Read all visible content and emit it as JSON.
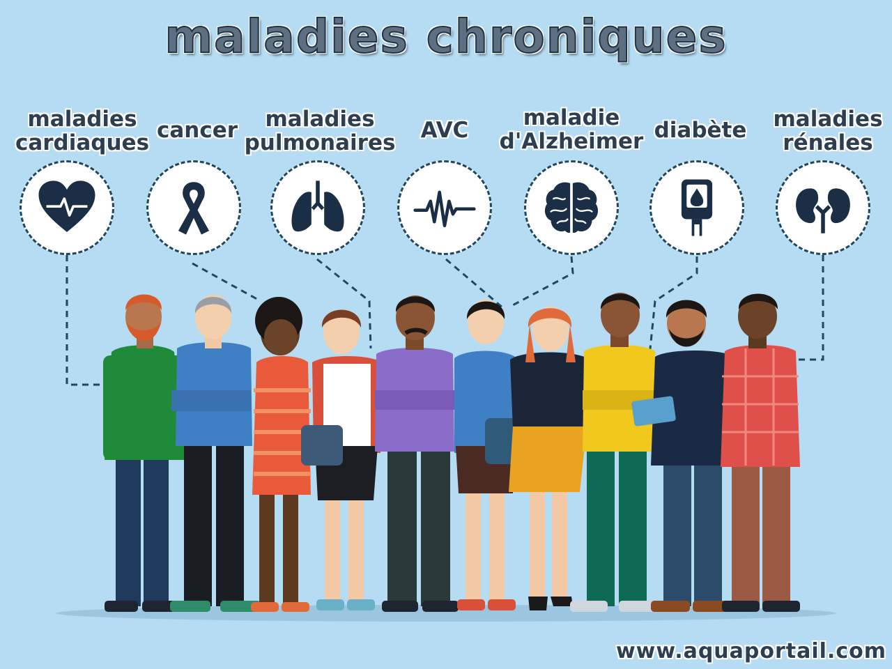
{
  "page": {
    "title": "maladies chroniques",
    "footer": "www.aquaportail.com"
  },
  "diseases": [
    {
      "line1": "maladies",
      "line2": "cardiaques",
      "icon": "heart-pulse-icon"
    },
    {
      "line1": "cancer",
      "line2": "",
      "icon": "cancer-ribbon-icon"
    },
    {
      "line1": "maladies",
      "line2": "pulmonaires",
      "icon": "lungs-icon"
    },
    {
      "line1": "AVC",
      "line2": "",
      "icon": "heartbeat-wave-icon"
    },
    {
      "line1": "maladie",
      "line2": "d'Alzheimer",
      "icon": "brain-icon"
    },
    {
      "line1": "diabète",
      "line2": "",
      "icon": "glucose-meter-icon"
    },
    {
      "line1": "maladies",
      "line2": "rénales",
      "icon": "kidneys-icon"
    }
  ],
  "colors": {
    "background": "#b5dcf3",
    "icon": "#1a2e45",
    "dashed_line": "#1c4866"
  }
}
